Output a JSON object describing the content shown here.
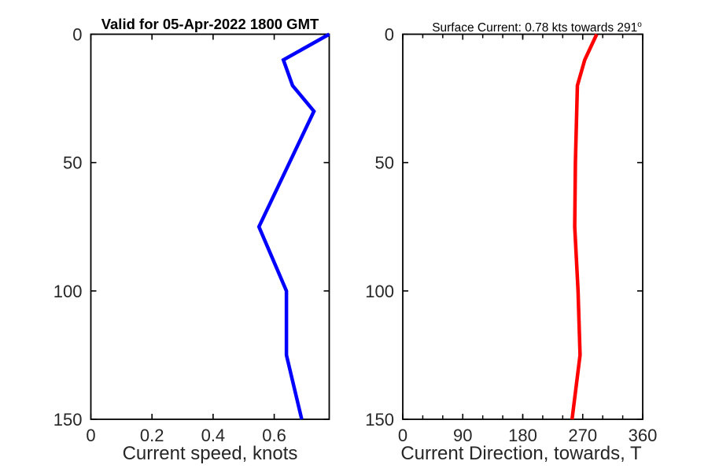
{
  "figure": {
    "background": "#ffffff",
    "axis_color": "#000000",
    "tick_text_color": "#262626",
    "depth_tick_labels": [
      "0",
      "50",
      "100",
      "150"
    ]
  },
  "chart_data": [
    {
      "type": "line",
      "title": "Valid for 05-Apr-2022 1800 GMT",
      "xlabel": "Current speed, knots",
      "ylabel": "",
      "xlim": [
        0,
        0.78
      ],
      "ylim": [
        0,
        150
      ],
      "y_axis_reversed": true,
      "x_ticks": [
        0,
        0.2,
        0.4,
        0.6
      ],
      "x_tick_labels": [
        "0",
        "0.2",
        "0.4",
        "0.6"
      ],
      "y_ticks": [
        0,
        50,
        100,
        150
      ],
      "y_tick_labels": [
        "0",
        "50",
        "100",
        "150"
      ],
      "grid": false,
      "line_color": "#0000ff",
      "series": [
        {
          "name": "current-speed-profile",
          "depth_m": [
            0,
            10,
            20,
            30,
            50,
            75,
            100,
            125,
            150
          ],
          "values": [
            0.78,
            0.63,
            0.66,
            0.73,
            0.65,
            0.55,
            0.64,
            0.64,
            0.69
          ]
        }
      ]
    },
    {
      "type": "line",
      "title": "Surface Current: 0.78 kts towards 291",
      "title_superscript": "o",
      "xlabel": "Current Direction, towards, T",
      "ylabel": "",
      "xlim": [
        0,
        360
      ],
      "ylim": [
        0,
        150
      ],
      "y_axis_reversed": true,
      "x_ticks": [
        0,
        90,
        180,
        270,
        360
      ],
      "x_tick_labels": [
        "0",
        "90",
        "180",
        "270",
        "360"
      ],
      "x_minor_tick_step": 30,
      "y_ticks": [
        0,
        50,
        100,
        150
      ],
      "y_tick_labels": [
        "0",
        "50",
        "100",
        "150"
      ],
      "grid": false,
      "line_color": "#ff0000",
      "series": [
        {
          "name": "current-direction-profile",
          "depth_m": [
            0,
            10,
            20,
            30,
            50,
            75,
            100,
            125,
            150
          ],
          "values": [
            291,
            273,
            262,
            261,
            259,
            258,
            263,
            266,
            254
          ]
        }
      ]
    }
  ]
}
